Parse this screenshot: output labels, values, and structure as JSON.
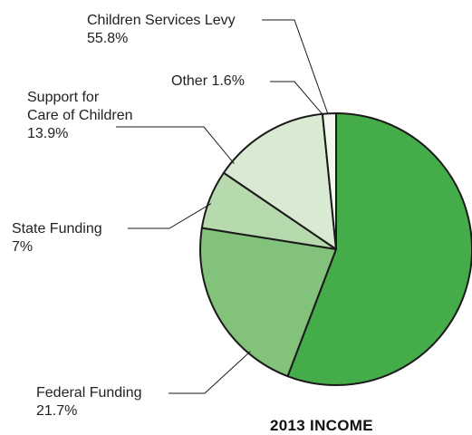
{
  "chart_data": {
    "type": "pie",
    "title": "2013 INCOME",
    "start_angle_deg": 0,
    "direction": "clockwise",
    "slices": [
      {
        "label": "Children Services Levy",
        "value": 55.8,
        "display": "55.8%",
        "color": "#45ac4a"
      },
      {
        "label": "Federal Funding",
        "value": 21.7,
        "display": "21.7%",
        "color": "#83c27a"
      },
      {
        "label": "State Funding",
        "value": 7.0,
        "display": "7%",
        "color": "#b6d9ad"
      },
      {
        "label": "Support for Care of Children",
        "label_lines": [
          "Support for",
          "Care of Children"
        ],
        "value": 13.9,
        "display": "13.9%",
        "color": "#d9ead3"
      },
      {
        "label": "Other",
        "value": 1.6,
        "display": "Other 1.6%",
        "color": "#f2f8ee"
      }
    ],
    "legend": "none",
    "grid": false
  }
}
